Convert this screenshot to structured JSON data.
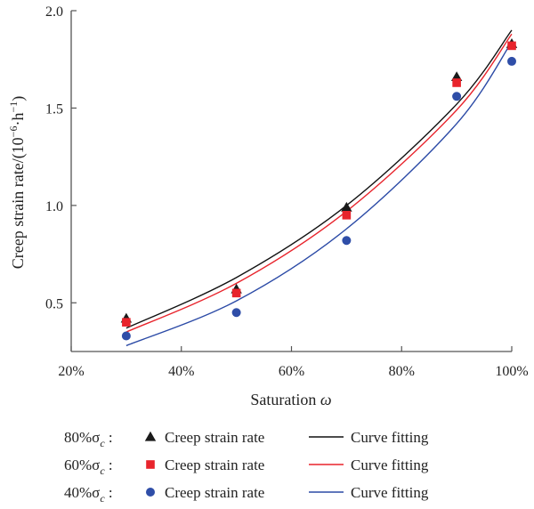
{
  "chart_data": {
    "type": "scatter",
    "xlabel": "Saturation ω",
    "xlabel_parts": [
      "Saturation ",
      "ω"
    ],
    "ylabel": "Creep strain rate/(10⁻⁶·h⁻¹)",
    "ylabel_parts": [
      "Creep strain rate/(10",
      "−6",
      "·h",
      "−1",
      ")"
    ],
    "xlim": [
      20,
      100
    ],
    "ylim": [
      0.25,
      2.0
    ],
    "x_ticks": [
      20,
      40,
      60,
      80,
      100
    ],
    "x_tick_labels": [
      "20%",
      "40%",
      "60%",
      "80%",
      "100%"
    ],
    "y_ticks": [
      0.5,
      1.0,
      1.5,
      2.0
    ],
    "y_tick_labels": [
      "0.5",
      "1.0",
      "1.5",
      "2.0"
    ],
    "grid": false,
    "legend_position": "bottom",
    "x": [
      30,
      50,
      70,
      90,
      100
    ],
    "series": [
      {
        "stress_label": "80%σc :",
        "stress_parts": [
          "80%σ",
          "c",
          " :"
        ],
        "marker": "triangle",
        "color": "#1a1a1a",
        "points_label": "Creep strain rate",
        "values": [
          0.42,
          0.57,
          0.99,
          1.66,
          1.83
        ],
        "fit_label": "Curve fitting",
        "fit_color": "#111111",
        "fit": [
          0.37,
          0.63,
          1.0,
          1.52,
          1.9
        ]
      },
      {
        "stress_label": "60%σc :",
        "stress_parts": [
          "60%σ",
          "c",
          " :"
        ],
        "marker": "square",
        "color": "#e8242c",
        "points_label": "Creep strain rate",
        "values": [
          0.4,
          0.55,
          0.95,
          1.63,
          1.82
        ],
        "fit_label": "Curve fitting",
        "fit_color": "#e8242c",
        "fit": [
          0.35,
          0.6,
          0.97,
          1.49,
          1.88
        ]
      },
      {
        "stress_label": "40%σc :",
        "stress_parts": [
          "40%σ",
          "c",
          " :"
        ],
        "marker": "circle",
        "color": "#2f4ea8",
        "points_label": "Creep strain rate",
        "values": [
          0.33,
          0.45,
          0.82,
          1.56,
          1.74
        ],
        "fit_label": "Curve fitting",
        "fit_color": "#2b4aa6",
        "fit": [
          0.28,
          0.51,
          0.88,
          1.42,
          1.84
        ]
      }
    ]
  }
}
